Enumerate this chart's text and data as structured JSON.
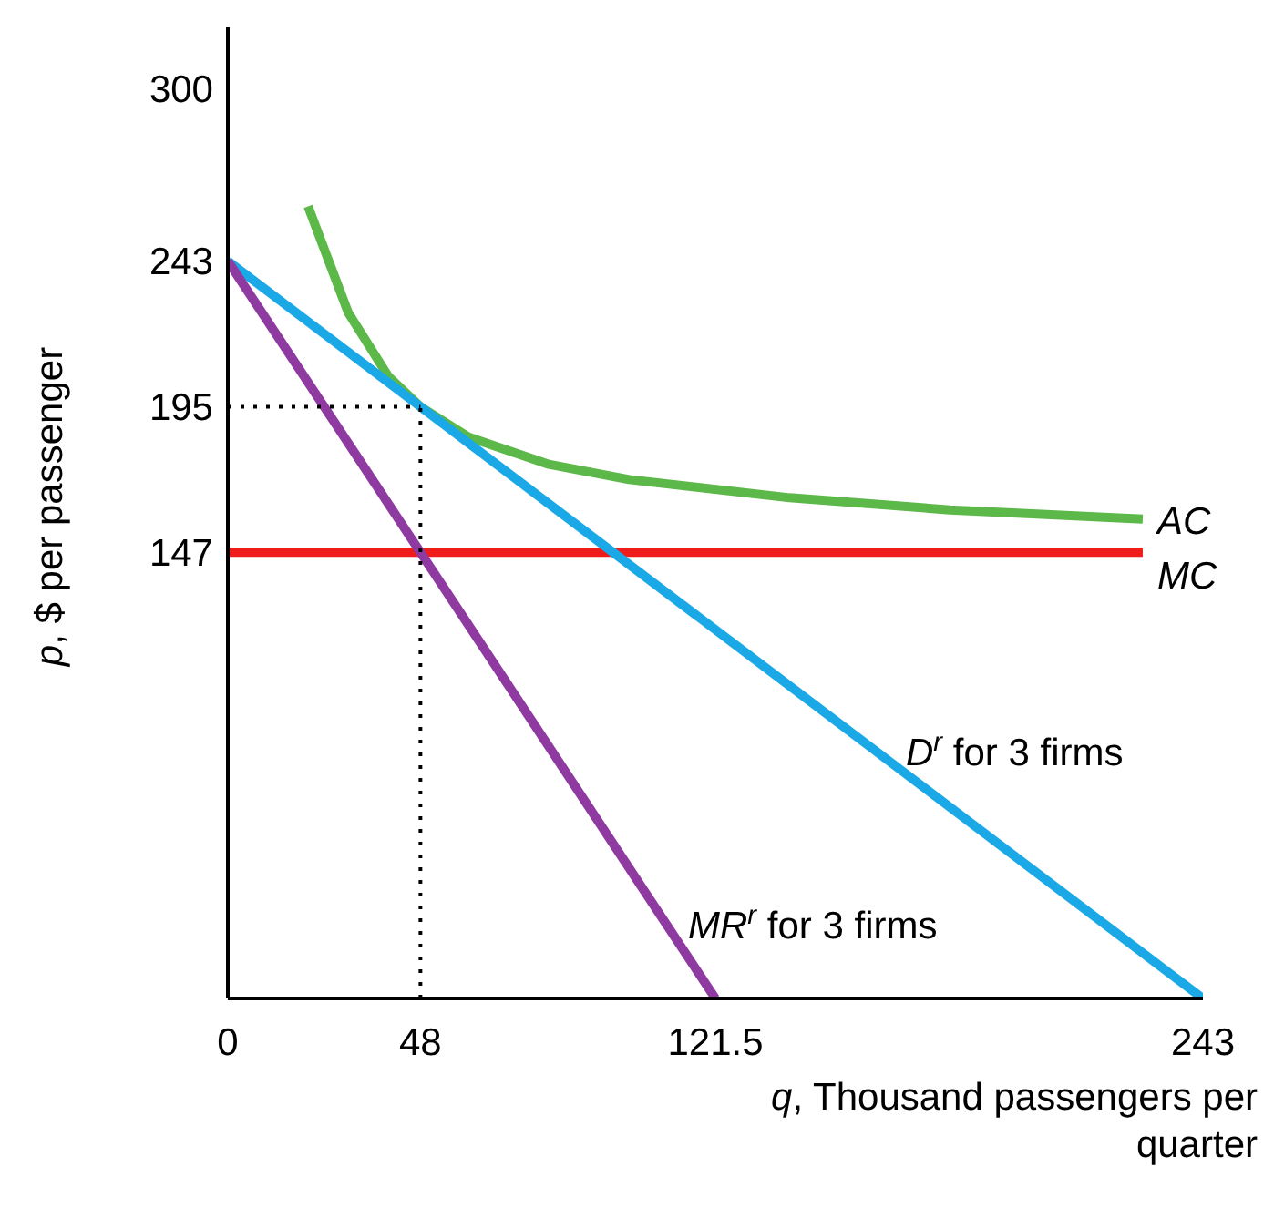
{
  "chart_data": {
    "type": "line",
    "xlabel": "q, Thousand passengers per quarter",
    "ylabel": "p, $ per passenger",
    "xlim": [
      0,
      243
    ],
    "ylim": [
      0,
      320
    ],
    "xticks": [
      0,
      48,
      121.5,
      243
    ],
    "yticks": [
      147,
      195,
      243,
      300
    ],
    "grid": false,
    "legend": false,
    "marker": "none",
    "series": [
      {
        "name": "AC",
        "color": "#5cb848",
        "x": [
          20,
          30,
          40,
          48,
          60,
          80,
          100,
          140,
          180,
          228
        ],
        "values": [
          261,
          226,
          205,
          195,
          185,
          176,
          171,
          165,
          161,
          158
        ]
      },
      {
        "name": "MC",
        "color": "#f01c1c",
        "x": [
          0,
          228
        ],
        "values": [
          147,
          147
        ]
      },
      {
        "name": "D$^{r}$ for 3 firms",
        "color": "#1ba8e6",
        "x": [
          0,
          243
        ],
        "values": [
          243,
          0
        ]
      },
      {
        "name": "MR$^{r}$ for 3 firms",
        "color": "#8e3aa0",
        "x": [
          0,
          121.5
        ],
        "values": [
          243,
          0
        ]
      },
      {
        "color": "#000000",
        "line_style": "dotted",
        "x": [
          0,
          48
        ],
        "values": [
          195,
          195
        ]
      },
      {
        "color": "#000000",
        "line_style": "dotted",
        "x": [
          48,
          48
        ],
        "values": [
          0,
          195
        ]
      }
    ]
  }
}
